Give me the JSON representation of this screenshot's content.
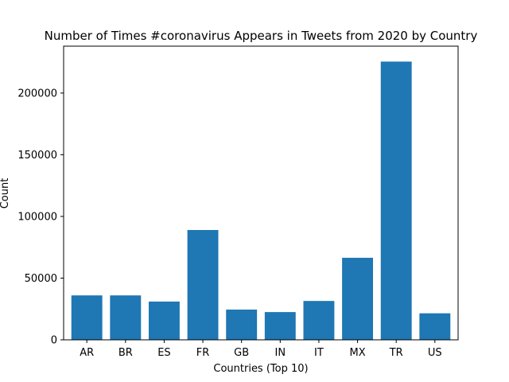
{
  "chart_data": {
    "type": "bar",
    "title": "Number of Times #coronavirus Appears in Tweets from 2020 by Country",
    "xlabel": "Countries (Top 10)",
    "ylabel": "Count",
    "categories": [
      "AR",
      "BR",
      "ES",
      "FR",
      "GB",
      "IN",
      "IT",
      "MX",
      "TR",
      "US"
    ],
    "values": [
      36000,
      36000,
      31000,
      89000,
      24500,
      22500,
      31500,
      66500,
      225500,
      21500
    ],
    "ylim": [
      0,
      238000
    ],
    "yticks": [
      0,
      50000,
      100000,
      150000,
      200000
    ],
    "ytick_labels": [
      "0",
      "50000",
      "100000",
      "150000",
      "200000"
    ],
    "bar_color": "#1f77b4",
    "grid": false,
    "legend": "none"
  }
}
